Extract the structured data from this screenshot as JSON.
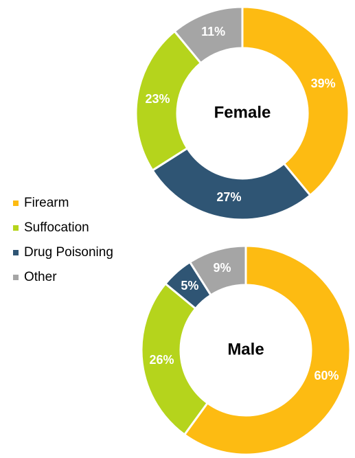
{
  "chart_data": [
    {
      "type": "pie",
      "title": "Female",
      "categories": [
        "Firearm",
        "Drug Poisoning",
        "Suffocation",
        "Other"
      ],
      "values": [
        39,
        27,
        23,
        11
      ],
      "value_labels": [
        "39%",
        "27%",
        "23%",
        "11%"
      ],
      "colors": [
        "#fdbb12",
        "#2f5574",
        "#b5d41c",
        "#a5a5a5"
      ]
    },
    {
      "type": "pie",
      "title": "Male",
      "categories": [
        "Firearm",
        "Suffocation",
        "Drug Poisoning",
        "Other"
      ],
      "values": [
        60,
        26,
        5,
        9
      ],
      "value_labels": [
        "60%",
        "26%",
        "5%",
        "9%"
      ],
      "colors": [
        "#fdbb12",
        "#b5d41c",
        "#2f5574",
        "#a5a5a5"
      ]
    }
  ]
}
